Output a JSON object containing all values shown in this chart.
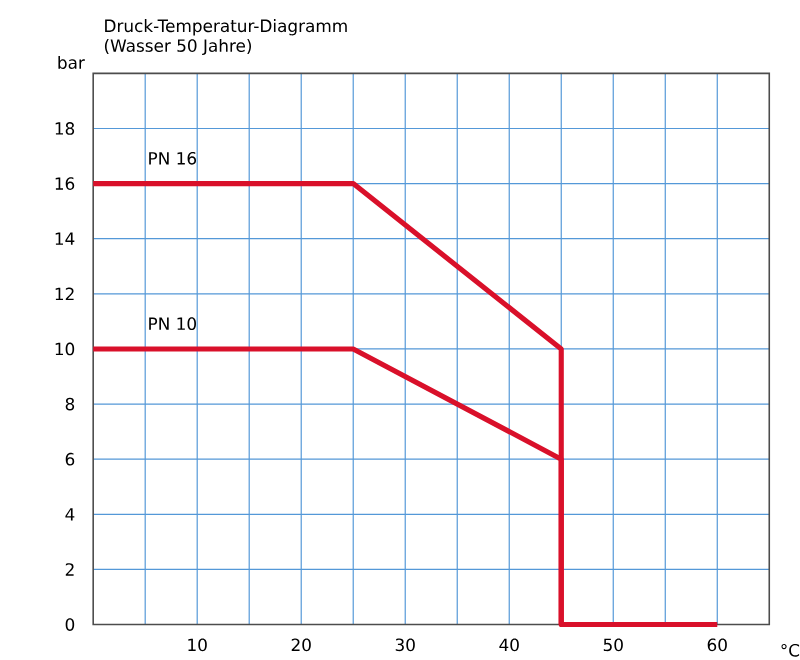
{
  "chart_data": {
    "type": "line",
    "title": "Druck-Temperatur-Diagramm",
    "subtitle": "(Wasser 50 Jahre)",
    "xlabel": "°C",
    "ylabel": "bar",
    "xlim": [
      0,
      65
    ],
    "ylim": [
      0,
      20
    ],
    "xticks": [
      {
        "value": 5,
        "label": null
      },
      10,
      {
        "value": 15,
        "label": null
      },
      20,
      {
        "value": 25,
        "label": null
      },
      30,
      {
        "value": 35,
        "label": null
      },
      40,
      {
        "value": 45,
        "label": null
      },
      50,
      {
        "value": 55,
        "label": null
      },
      60
    ],
    "yticks": [
      0,
      2,
      4,
      6,
      8,
      10,
      12,
      14,
      16,
      18
    ],
    "grid": true,
    "marker": "none",
    "line_style": "solid",
    "series": [
      {
        "name": "PN 16",
        "color": "#d9102a",
        "x": [
          0,
          25,
          45,
          45,
          60
        ],
        "values": [
          16,
          16,
          10,
          0,
          0
        ]
      },
      {
        "name": "PN 10",
        "color": "#d9102a",
        "x": [
          0,
          25,
          45,
          45
        ],
        "values": [
          10,
          10,
          6,
          0
        ]
      }
    ]
  }
}
